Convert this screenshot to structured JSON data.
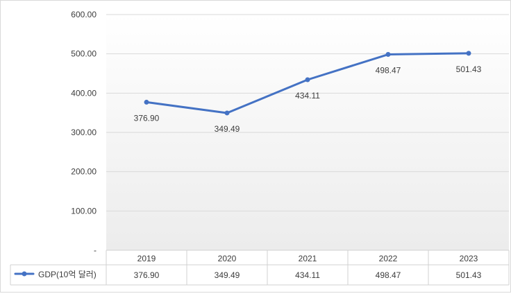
{
  "chart_data": {
    "type": "line",
    "categories": [
      "2019",
      "2020",
      "2021",
      "2022",
      "2023"
    ],
    "series": [
      {
        "name": "GDP(10억 달러)",
        "values": [
          376.9,
          349.49,
          434.11,
          498.47,
          501.43
        ]
      }
    ],
    "value_labels": [
      "376.90",
      "349.49",
      "434.11",
      "498.47",
      "501.43"
    ],
    "y_ticks": [
      0,
      100,
      200,
      300,
      400,
      500,
      600
    ],
    "y_tick_labels": [
      "-",
      "100.00",
      "200.00",
      "300.00",
      "400.00",
      "500.00",
      "600.00"
    ],
    "ylim": [
      0,
      600
    ],
    "grid": true,
    "legend": "data-table-left",
    "line_color": "#4472c4"
  }
}
